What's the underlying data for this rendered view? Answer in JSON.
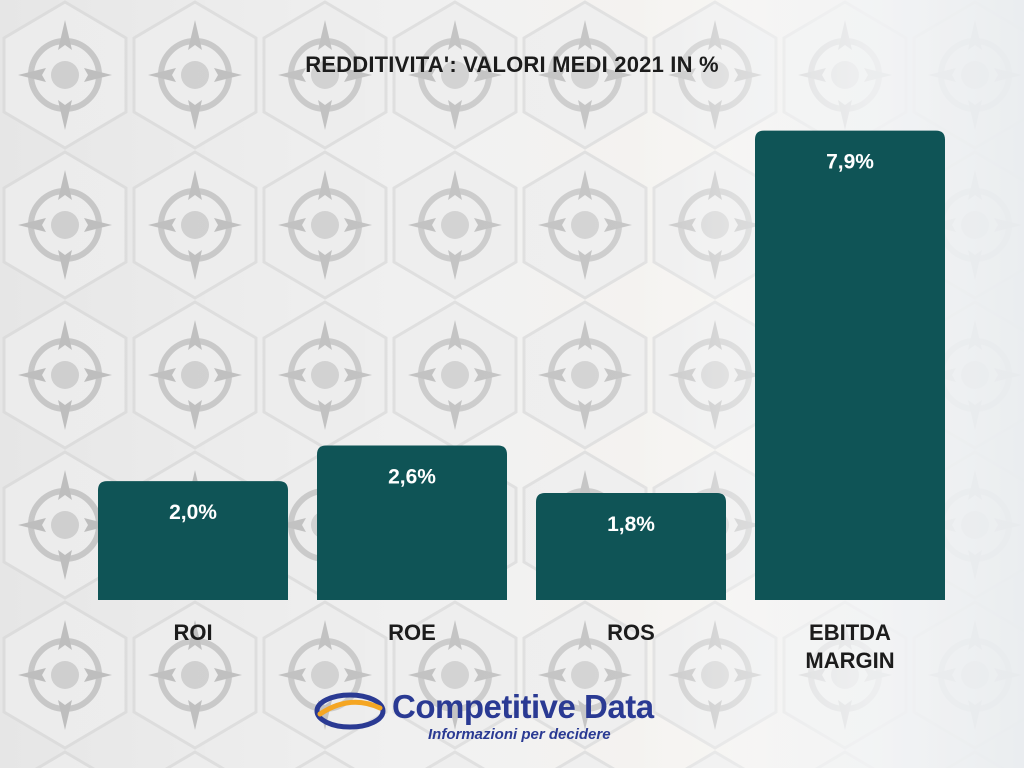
{
  "chart_data": {
    "type": "bar",
    "title": "REDDITIVITA': VALORI MEDI 2021 IN %",
    "categories": [
      "ROI",
      "ROE",
      "ROS",
      "EBITDA MARGIN"
    ],
    "values": [
      2.0,
      2.6,
      1.8,
      7.9
    ],
    "value_labels": [
      "2,0%",
      "2,6%",
      "1,8%",
      "7,9%"
    ],
    "unit": "%",
    "ylim": [
      0,
      8.5
    ],
    "grid": false,
    "legend": "none",
    "bar_color": "#0f5456"
  },
  "logo": {
    "name": "Competitive Data",
    "tagline": "Informazioni per decidere",
    "text_color": "#2a3a93",
    "accent_color": "#f5a623"
  }
}
